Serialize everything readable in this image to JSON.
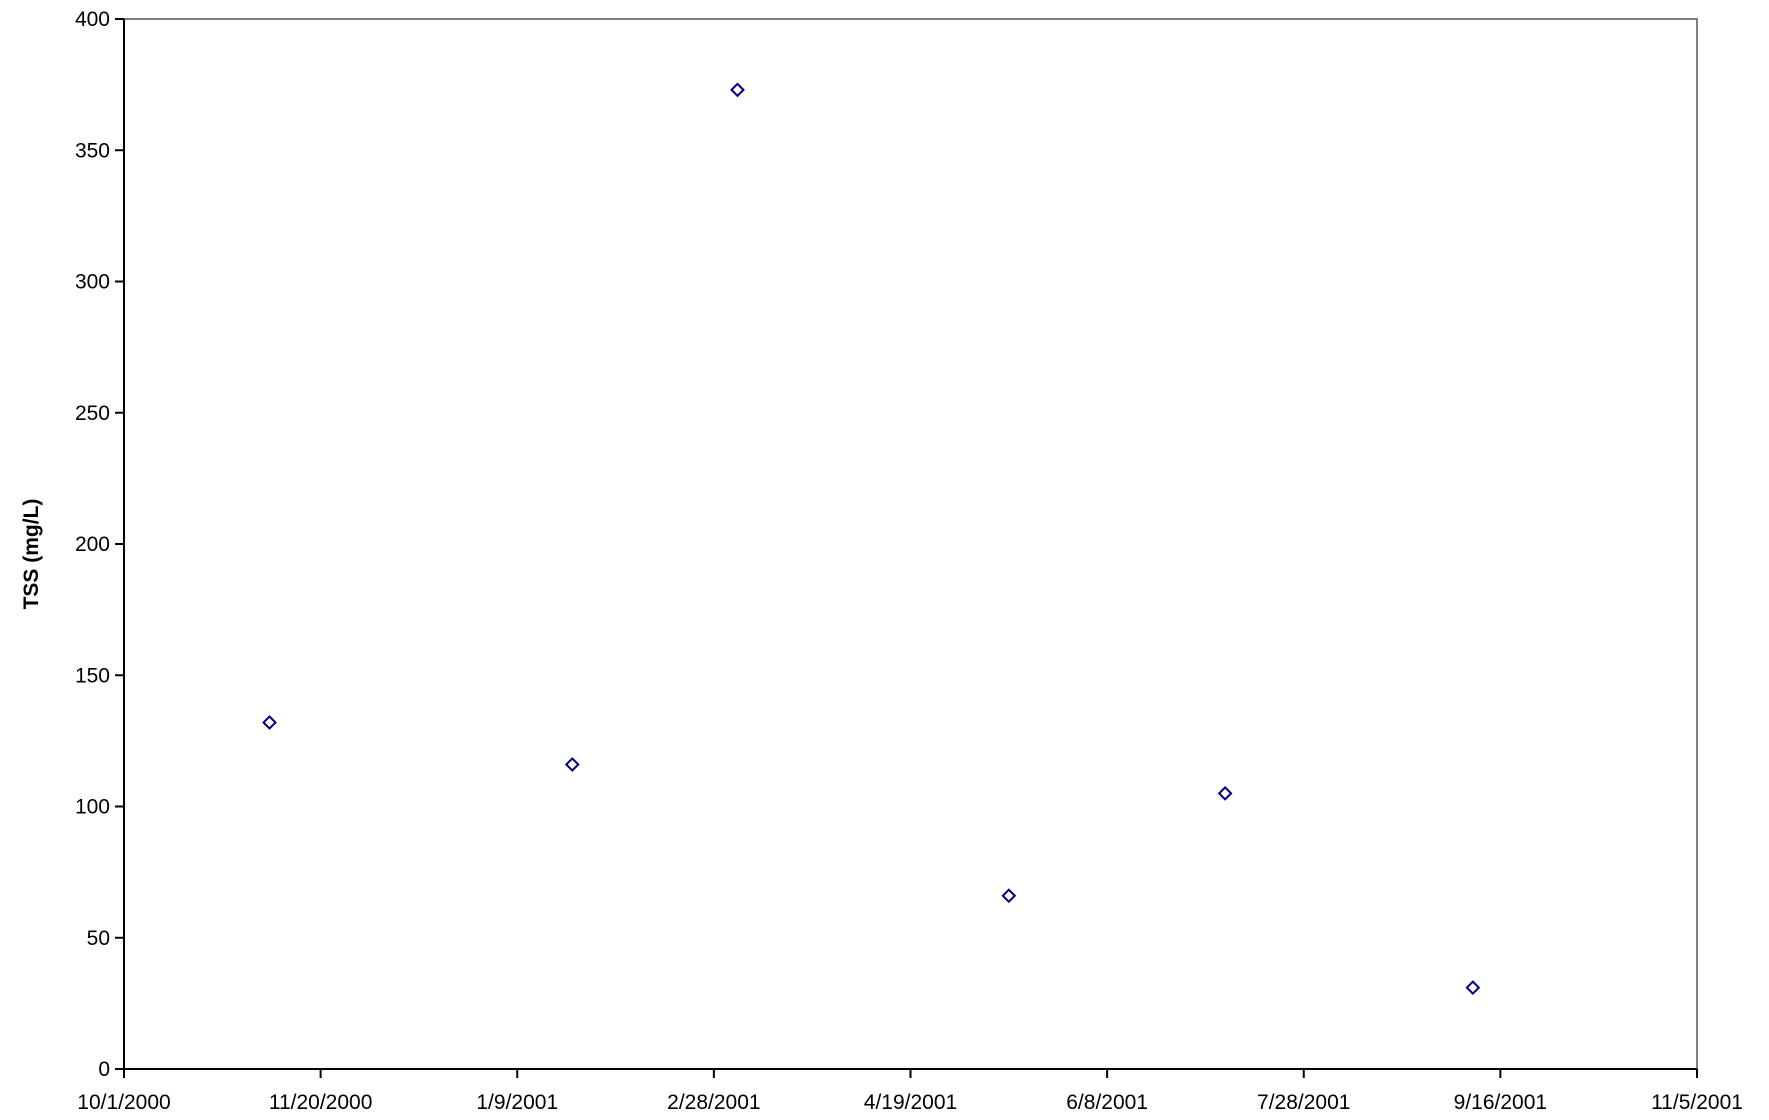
{
  "chart_data": {
    "type": "scatter",
    "title": "",
    "xlabel": "",
    "ylabel": "TSS (mg/L)",
    "x_axis_type": "date",
    "xlim": [
      "10/1/2000",
      "11/5/2001"
    ],
    "ylim": [
      0,
      400
    ],
    "x_ticks": [
      "10/1/2000",
      "11/20/2000",
      "1/9/2001",
      "2/28/2001",
      "4/19/2001",
      "6/8/2001",
      "7/28/2001",
      "9/16/2001",
      "11/5/2001"
    ],
    "y_ticks": [
      0,
      50,
      100,
      150,
      200,
      250,
      300,
      350,
      400
    ],
    "grid": false,
    "legend": "none",
    "marker": "hollow-diamond",
    "series": [
      {
        "x": [
          "11/7/2000",
          "1/23/2001",
          "3/6/2001",
          "5/14/2001",
          "7/8/2001",
          "9/9/2001"
        ],
        "y": [
          132,
          116,
          373,
          66,
          105,
          31
        ],
        "color": "#000080"
      }
    ]
  }
}
